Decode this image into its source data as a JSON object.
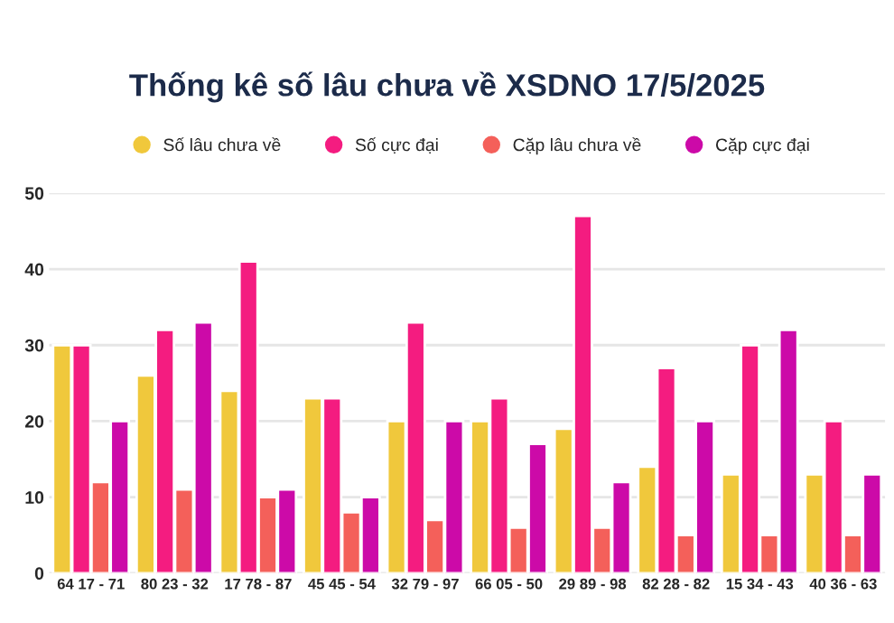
{
  "chart_data": {
    "type": "bar",
    "title": "Thống kê số lâu chưa về XSDNO 17/5/2025",
    "categories": [
      "64 17 - 71",
      "80 23 - 32",
      "17 78 - 87",
      "45 45 - 54",
      "32 79 - 97",
      "66 05 - 50",
      "29 89 - 98",
      "82 28 - 82",
      "15 34 - 43",
      "40 36 - 63"
    ],
    "series": [
      {
        "name": "Số lâu chưa về",
        "color": "#f0c83c",
        "values": [
          30,
          26,
          24,
          23,
          20,
          20,
          19,
          14,
          13,
          13
        ]
      },
      {
        "name": "Số cực đại",
        "color": "#f41c80",
        "values": [
          30,
          32,
          41,
          23,
          33,
          23,
          47,
          27,
          30,
          20
        ]
      },
      {
        "name": "Cặp lâu chưa về",
        "color": "#f4605a",
        "values": [
          12,
          11,
          10,
          8,
          7,
          6,
          6,
          5,
          5,
          5
        ]
      },
      {
        "name": "Cặp cực đại",
        "color": "#cc0aa8",
        "values": [
          20,
          33,
          11,
          10,
          20,
          17,
          12,
          20,
          32,
          13
        ]
      }
    ],
    "ylim": [
      0,
      50
    ],
    "yticks": [
      0,
      10,
      20,
      30,
      40,
      50
    ],
    "grid": "y",
    "legend": "top"
  }
}
